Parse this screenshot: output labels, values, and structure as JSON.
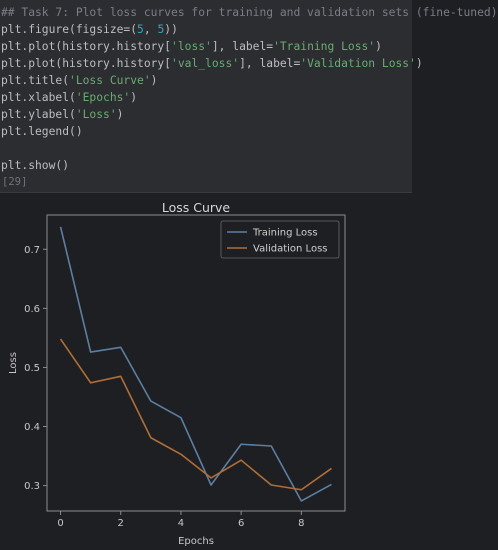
{
  "code": {
    "lines": [
      [
        {
          "t": "## Task 7: Plot loss curves for training and validation sets (fine-tuned)",
          "c": "comment"
        }
      ],
      [
        {
          "t": "plt.figure(figsize=(",
          "c": "fn"
        },
        {
          "t": "5",
          "c": "num"
        },
        {
          "t": ", ",
          "c": "fn"
        },
        {
          "t": "5",
          "c": "num"
        },
        {
          "t": "))",
          "c": "fn"
        }
      ],
      [
        {
          "t": "plt.plot(history.history[",
          "c": "fn"
        },
        {
          "t": "'loss'",
          "c": "str"
        },
        {
          "t": "], label=",
          "c": "fn"
        },
        {
          "t": "'Training Loss'",
          "c": "str"
        },
        {
          "t": ")",
          "c": "fn"
        }
      ],
      [
        {
          "t": "plt.plot(history.history[",
          "c": "fn"
        },
        {
          "t": "'val_loss'",
          "c": "str"
        },
        {
          "t": "], label=",
          "c": "fn"
        },
        {
          "t": "'Validation Loss'",
          "c": "str"
        },
        {
          "t": ")",
          "c": "fn"
        }
      ],
      [
        {
          "t": "plt.title(",
          "c": "fn"
        },
        {
          "t": "'Loss Curve'",
          "c": "str"
        },
        {
          "t": ")",
          "c": "fn"
        }
      ],
      [
        {
          "t": "plt.xlabel(",
          "c": "fn"
        },
        {
          "t": "'Epochs'",
          "c": "str"
        },
        {
          "t": ")",
          "c": "fn"
        }
      ],
      [
        {
          "t": "plt.ylabel(",
          "c": "fn"
        },
        {
          "t": "'Loss'",
          "c": "str"
        },
        {
          "t": ")",
          "c": "fn"
        }
      ],
      [
        {
          "t": "plt.legend()",
          "c": "fn"
        }
      ],
      [
        {
          "t": "",
          "c": "fn"
        }
      ],
      [
        {
          "t": "plt.show()",
          "c": "fn"
        }
      ]
    ],
    "execution_count": "[29]"
  },
  "chart_data": {
    "type": "line",
    "title": "Loss Curve",
    "xlabel": "Epochs",
    "ylabel": "Loss",
    "xlim": [
      -0.45,
      9.45
    ],
    "ylim": [
      0.257,
      0.758
    ],
    "x_ticks": [
      0,
      2,
      4,
      6,
      8
    ],
    "y_ticks": [
      0.3,
      0.4,
      0.5,
      0.6,
      0.7
    ],
    "x": [
      0,
      1,
      2,
      3,
      4,
      5,
      6,
      7,
      8,
      9
    ],
    "series": [
      {
        "name": "Training Loss",
        "color": "#5b7fa3",
        "values": [
          0.738,
          0.526,
          0.534,
          0.443,
          0.415,
          0.301,
          0.37,
          0.367,
          0.274,
          0.302
        ]
      },
      {
        "name": "Validation Loss",
        "color": "#b06e38",
        "values": [
          0.548,
          0.474,
          0.485,
          0.381,
          0.353,
          0.313,
          0.343,
          0.301,
          0.293,
          0.329
        ]
      }
    ],
    "legend": "top-right",
    "grid": false
  }
}
